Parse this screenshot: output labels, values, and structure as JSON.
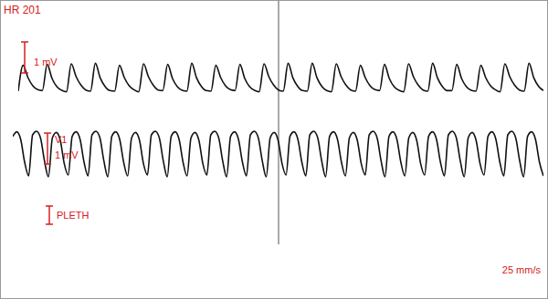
{
  "chart_data": {
    "type": "line",
    "title": "HR 201",
    "annotations": [
      "25 mm/s"
    ],
    "tick_labels": false,
    "ylim": [
      -1.5,
      1.5
    ],
    "series": [
      {
        "scale_label": "1 mV",
        "color": "#111111",
        "values": [
          0,
          0.85,
          0.45,
          0.18,
          0.05,
          0.02,
          0.88,
          0.42,
          0.15,
          0.03,
          -0.02,
          0.9,
          0.48,
          0.2,
          0.04,
          0,
          0.92,
          0.44,
          0.16,
          0.02,
          0,
          0.85,
          0.45,
          0.18,
          0.05,
          -0.02,
          0.9,
          0.48,
          0.2,
          0.04,
          0.02,
          0.88,
          0.42,
          0.15,
          0.03,
          0,
          0.92,
          0.44,
          0.16,
          0.02,
          0,
          0.85,
          0.45,
          0.18,
          0.05,
          0.02,
          0.88,
          0.42,
          0.15,
          0.03,
          -0.02,
          0.9,
          0.48,
          0.2,
          0.04,
          0,
          0.92,
          0.44,
          0.16,
          0.02,
          0,
          0.92,
          0.44,
          0.16,
          0.02,
          -0.02,
          0.9,
          0.48,
          0.2,
          0.04,
          0,
          0.85,
          0.45,
          0.18,
          0.05,
          0.02,
          0.88,
          0.42,
          0.15,
          0.03,
          -0.02,
          0.9,
          0.48,
          0.2,
          0.04,
          0,
          0.92,
          0.44,
          0.16,
          0.02,
          0.02,
          0.88,
          0.42,
          0.15,
          0.03,
          0,
          0.85,
          0.45,
          0.18,
          0.05,
          -0.02,
          0.9,
          0.48,
          0.2,
          0.04,
          0,
          0.92,
          0.44,
          0.16,
          0.02
        ]
      },
      {
        "name": "V1",
        "scale_label": "1 mV",
        "color": "#111111",
        "values": [
          0.55,
          0.7,
          0.45,
          -0.3,
          -0.75,
          0.6,
          0.72,
          0.5,
          -0.25,
          -0.78,
          0.5,
          0.68,
          0.42,
          -0.35,
          -0.72,
          0.55,
          0.7,
          0.45,
          -0.3,
          -0.75,
          0.6,
          0.72,
          0.5,
          -0.25,
          -0.78,
          0.55,
          0.7,
          0.45,
          -0.3,
          -0.75,
          0.5,
          0.68,
          0.42,
          -0.35,
          -0.72,
          0.6,
          0.72,
          0.5,
          -0.25,
          -0.78,
          0.55,
          0.7,
          0.45,
          -0.3,
          -0.75,
          0.5,
          0.68,
          0.42,
          -0.35,
          -0.72,
          0.6,
          0.72,
          0.5,
          -0.25,
          -0.78,
          0.55,
          0.7,
          0.45,
          -0.3,
          -0.75,
          0.6,
          0.72,
          0.5,
          -0.25,
          -0.78,
          0.5,
          0.68,
          0.42,
          -0.35,
          -0.72,
          0.55,
          0.7,
          0.45,
          -0.3,
          -0.75,
          0.6,
          0.72,
          0.5,
          -0.25,
          -0.78,
          0.55,
          0.7,
          0.45,
          -0.3,
          -0.75,
          0.5,
          0.68,
          0.42,
          -0.35,
          -0.72,
          0.6,
          0.72,
          0.5,
          -0.25,
          -0.78,
          0.55,
          0.7,
          0.45,
          -0.3,
          -0.75,
          0.5,
          0.68,
          0.42,
          -0.35,
          -0.72,
          0.55,
          0.7,
          0.45,
          -0.3,
          -0.75,
          0.6,
          0.72,
          0.5,
          -0.25,
          -0.78,
          0.5,
          0.68,
          0.42,
          -0.35,
          -0.72,
          0.55,
          0.7,
          0.45,
          -0.3,
          -0.75,
          0.6,
          0.72,
          0.5,
          -0.25,
          -0.78,
          0.55,
          0.7,
          0.45,
          -0.3,
          -0.75
        ]
      },
      {
        "name": "PLETH",
        "color": "#111111",
        "values": []
      }
    ]
  }
}
